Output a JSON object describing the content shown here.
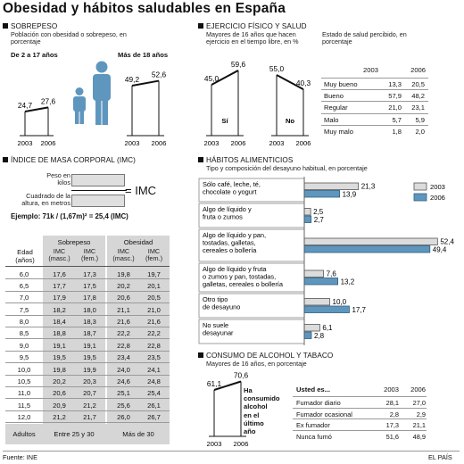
{
  "header": {
    "title": "Obesidad y hábitos saludables en España"
  },
  "footer": {
    "source": "Fuente: INE",
    "brand": "EL PAÍS"
  },
  "colors": {
    "light_bar": "#dcdcdc",
    "blue_bar": "#5f96bd",
    "panel_gray": "#d6d6d6",
    "ink": "#111111"
  },
  "sobrepeso": {
    "title": "SOBREPESO",
    "subtitle": "Población con obesidad o sobrepeso, en porcentaje",
    "group1_label": "De 2 a 17 años",
    "group2_label": "Más de 18 años",
    "chart_data": {
      "type": "line",
      "title": "SOBREPESO",
      "x": [
        "2003",
        "2006"
      ],
      "series": [
        {
          "name": "De 2 a 17 años",
          "values": [
            24.7,
            27.6
          ],
          "labels": [
            "24,7",
            "27,6"
          ]
        },
        {
          "name": "Más de 18 años",
          "values": [
            49.2,
            52.6
          ],
          "labels": [
            "49,2",
            "52,6"
          ]
        }
      ]
    }
  },
  "ejercicio": {
    "title": "EJERCICIO FÍSICO Y SALUD",
    "subtitle": "Mayores de 16 años que hacen ejercicio en el tiempo libre, en %",
    "chart_data": {
      "type": "line",
      "title": "EJERCICIO FÍSICO Y SALUD",
      "x": [
        "2003",
        "2006"
      ],
      "series": [
        {
          "name": "Sí",
          "values": [
            45.0,
            59.6
          ],
          "labels": [
            "45,0",
            "59,6"
          ]
        },
        {
          "name": "No",
          "values": [
            55.0,
            40.3
          ],
          "labels": [
            "55,0",
            "40,3"
          ]
        }
      ]
    },
    "salud_subtitle": "Estado de salud percibido, en porcentaje",
    "salud_table": {
      "columns": [
        "2003",
        "2006"
      ],
      "rows": [
        {
          "label": "Muy bueno",
          "v2003": "13,3",
          "v2006": "20,5"
        },
        {
          "label": "Bueno",
          "v2003": "57,9",
          "v2006": "48,2"
        },
        {
          "label": "Regular",
          "v2003": "21,0",
          "v2006": "23,1"
        },
        {
          "label": "Malo",
          "v2003": "5,7",
          "v2006": "5,9"
        },
        {
          "label": "Muy malo",
          "v2003": "1,8",
          "v2006": "2,0"
        }
      ]
    }
  },
  "imc": {
    "title": "ÍNDICE DE MASA CORPORAL (IMC)",
    "peso_label": "Peso en kilos",
    "altura_label": "Cuadrado de la altura, en metros",
    "equals_label": "= IMC",
    "example": "Ejemplo: 71k / (1,67m)² = 25,4 (IMC)",
    "table": {
      "header_edad": "Edad (años)",
      "header_sobrepeso": "Sobrepeso",
      "header_obesidad": "Obesidad",
      "sub_masc": "IMC (masc.)",
      "sub_fem": "IMC (fem.)",
      "rows": [
        [
          "6,0",
          "17,6",
          "17,3",
          "19,8",
          "19,7"
        ],
        [
          "6,5",
          "17,7",
          "17,5",
          "20,2",
          "20,1"
        ],
        [
          "7,0",
          "17,9",
          "17,8",
          "20,6",
          "20,5"
        ],
        [
          "7,5",
          "18,2",
          "18,0",
          "21,1",
          "21,0"
        ],
        [
          "8,0",
          "18,4",
          "18,3",
          "21,6",
          "21,6"
        ],
        [
          "8,5",
          "18,8",
          "18,7",
          "22,2",
          "22,2"
        ],
        [
          "9,0",
          "19,1",
          "19,1",
          "22,8",
          "22,8"
        ],
        [
          "9,5",
          "19,5",
          "19,5",
          "23,4",
          "23,5"
        ],
        [
          "10,0",
          "19,8",
          "19,9",
          "24,0",
          "24,1"
        ],
        [
          "10,5",
          "20,2",
          "20,3",
          "24,6",
          "24,8"
        ],
        [
          "11,0",
          "20,6",
          "20,7",
          "25,1",
          "25,4"
        ],
        [
          "11,5",
          "20,9",
          "21,2",
          "25,6",
          "26,1"
        ],
        [
          "12,0",
          "21,2",
          "21,7",
          "26,0",
          "26,7"
        ]
      ],
      "adultos_label": "Adultos",
      "adultos_sobrepeso": "Entre 25 y 30",
      "adultos_obesidad": "Más de 30"
    }
  },
  "habitos": {
    "title": "HÁBITOS ALIMENTICIOS",
    "subtitle": "Tipo y composición del desayuno habitual, en porcentaje",
    "legend": [
      "2003",
      "2006"
    ],
    "chart_data": {
      "type": "bar",
      "title": "HÁBITOS ALIMENTICIOS",
      "categories": [
        "Sólo café, leche, té, chocolate o yogurt",
        "Algo de líquido y fruta o zumos",
        "Algo de líquido y pan, tostadas, galletas, cereales o bollería",
        "Algo de líquido y fruta o zumos y pan, tostadas, galletas, cereales o bollería",
        "Otro tipo de desayuno",
        "No suele desayunar"
      ],
      "category_lines": [
        [
          "Sólo café, leche, té,",
          "chocolate o yogurt"
        ],
        [
          "Algo de líquido y",
          "fruta o zumos"
        ],
        [
          "Algo de líquido y pan,",
          "tostadas, galletas,",
          "cereales o bollería"
        ],
        [
          "Algo de líquido y fruta",
          "o zumos y pan, tostadas,",
          "galletas, cereales o bollería"
        ],
        [
          "Otro tipo",
          "de desayuno"
        ],
        [
          "No suele",
          "desayunar"
        ]
      ],
      "series": [
        {
          "name": "2003",
          "values": [
            21.3,
            2.5,
            52.4,
            7.6,
            10.0,
            6.1
          ],
          "labels": [
            "21,3",
            "2,5",
            "52,4",
            "7,6",
            "10,0",
            "6,1"
          ]
        },
        {
          "name": "2006",
          "values": [
            13.9,
            2.7,
            49.4,
            13.2,
            17.7,
            2.8
          ],
          "labels": [
            "13,9",
            "2,7",
            "49,4",
            "13,2",
            "17,7",
            "2,8"
          ]
        }
      ]
    }
  },
  "alcohol": {
    "title": "CONSUMO DE ALCOHOL Y TABACO",
    "subtitle": "Mayores de 16 años, en porcentaje",
    "side_label": "Ha consumido alcohol en el último año",
    "chart_data": {
      "type": "line",
      "title": "CONSUMO DE ALCOHOL Y TABACO",
      "x": [
        "2003",
        "2006"
      ],
      "series": [
        {
          "name": "Ha consumido alcohol en el último año",
          "values": [
            61.1,
            70.6
          ],
          "labels": [
            "61,1",
            "70,6"
          ]
        }
      ]
    },
    "table": {
      "header": "Usted es...",
      "columns": [
        "2003",
        "2006"
      ],
      "rows": [
        {
          "label": "Fumador diario",
          "v2003": "28,1",
          "v2006": "27,0"
        },
        {
          "label": "Fumador ocasional",
          "v2003": "2,8",
          "v2006": "2,9"
        },
        {
          "label": "Ex fumador",
          "v2003": "17,3",
          "v2006": "21,1"
        },
        {
          "label": "Nunca fumó",
          "v2003": "51,6",
          "v2006": "48,9"
        }
      ]
    }
  }
}
